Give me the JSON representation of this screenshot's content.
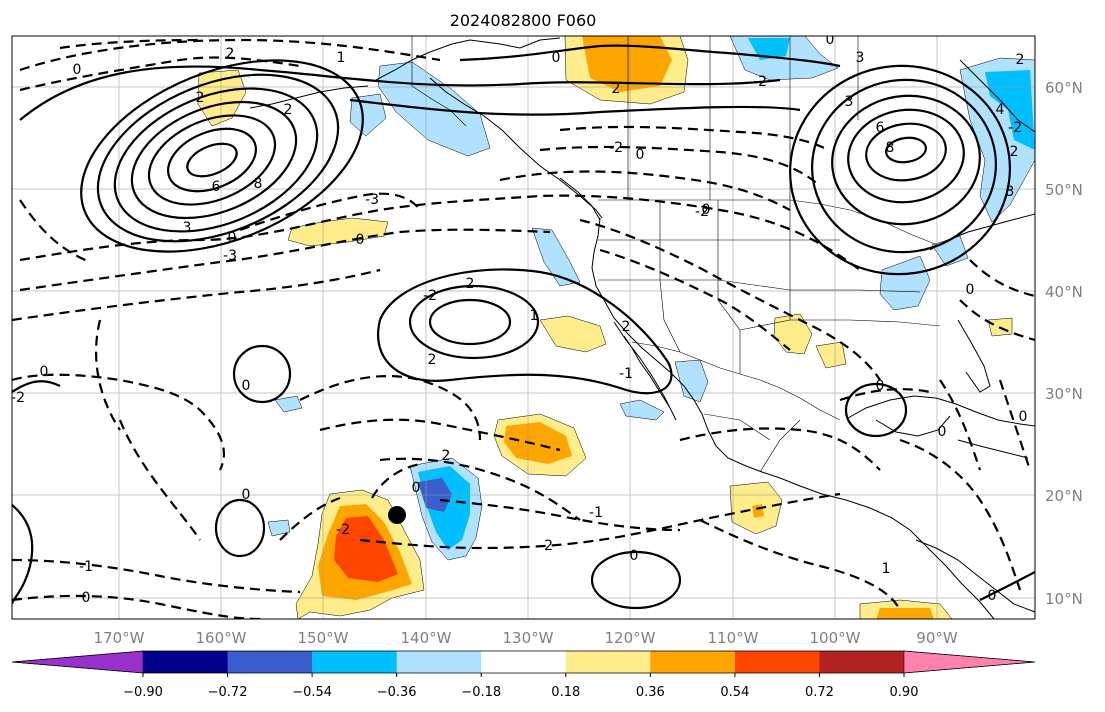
{
  "title": "2024082800 F060",
  "lon_labels": [
    "170°W",
    "160°W",
    "150°W",
    "140°W",
    "130°W",
    "120°W",
    "110°W",
    "100°W",
    "90°W"
  ],
  "lat_labels": [
    "60°N",
    "50°N",
    "40°N",
    "30°N",
    "20°N",
    "10°N"
  ],
  "colorbar": {
    "tick_labels": [
      "−0.90",
      "−0.72",
      "−0.54",
      "−0.36",
      "−0.18",
      "0.18",
      "0.36",
      "0.54",
      "0.72",
      "0.90"
    ],
    "colors": [
      "#9932cc",
      "#00008b",
      "#3a5fcd",
      "#00bfff",
      "#b0e2ff",
      "#ffffff",
      "#ffec8b",
      "#ffa500",
      "#ff4500",
      "#b22222",
      "#ff82ab"
    ]
  },
  "contour_labels": [
    "0",
    "2",
    "1",
    "0",
    "2",
    "-2",
    "0",
    "2",
    "4",
    "3",
    "-2",
    "2",
    "2",
    "3",
    "6",
    "8",
    "-2",
    "2",
    "3",
    "6",
    "8",
    "3",
    "-3",
    "-2",
    "-3",
    "0",
    "-2",
    "2",
    "1",
    "2",
    "2",
    "-2",
    "0",
    "0",
    "0",
    "0",
    "0",
    "2",
    "0",
    "-2",
    "-1",
    "0",
    "-2",
    "-1",
    "0",
    "1",
    "0",
    "0",
    "0",
    "0",
    "0",
    "-1",
    "0"
  ],
  "marker": "storm-position"
}
